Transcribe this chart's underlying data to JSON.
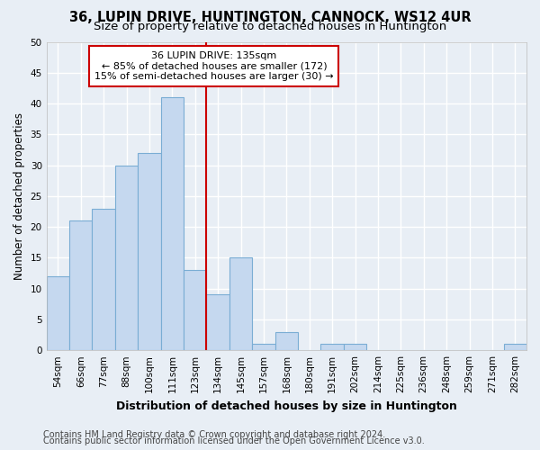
{
  "title": "36, LUPIN DRIVE, HUNTINGTON, CANNOCK, WS12 4UR",
  "subtitle": "Size of property relative to detached houses in Huntington",
  "xlabel": "Distribution of detached houses by size in Huntington",
  "ylabel": "Number of detached properties",
  "categories": [
    "54sqm",
    "66sqm",
    "77sqm",
    "88sqm",
    "100sqm",
    "111sqm",
    "123sqm",
    "134sqm",
    "145sqm",
    "157sqm",
    "168sqm",
    "180sqm",
    "191sqm",
    "202sqm",
    "214sqm",
    "225sqm",
    "236sqm",
    "248sqm",
    "259sqm",
    "271sqm",
    "282sqm"
  ],
  "values": [
    12,
    21,
    23,
    30,
    32,
    41,
    13,
    9,
    15,
    1,
    3,
    0,
    1,
    1,
    0,
    0,
    0,
    0,
    0,
    0,
    1
  ],
  "bar_color": "#c5d8ef",
  "bar_edge_color": "#7aadd4",
  "reference_line_index": 6.5,
  "annotation_text_line1": "36 LUPIN DRIVE: 135sqm",
  "annotation_text_line2": "← 85% of detached houses are smaller (172)",
  "annotation_text_line3": "15% of semi-detached houses are larger (30) →",
  "annotation_box_facecolor": "#ffffff",
  "annotation_box_edgecolor": "#cc0000",
  "ylim": [
    0,
    50
  ],
  "yticks": [
    0,
    5,
    10,
    15,
    20,
    25,
    30,
    35,
    40,
    45,
    50
  ],
  "bg_color": "#e8eef5",
  "plot_bg_color": "#e8eef5",
  "grid_color": "#ffffff",
  "footer_line1": "Contains HM Land Registry data © Crown copyright and database right 2024.",
  "footer_line2": "Contains public sector information licensed under the Open Government Licence v3.0.",
  "title_fontsize": 10.5,
  "subtitle_fontsize": 9.5,
  "xlabel_fontsize": 9,
  "ylabel_fontsize": 8.5,
  "tick_fontsize": 7.5,
  "annot_fontsize": 8,
  "footer_fontsize": 7
}
